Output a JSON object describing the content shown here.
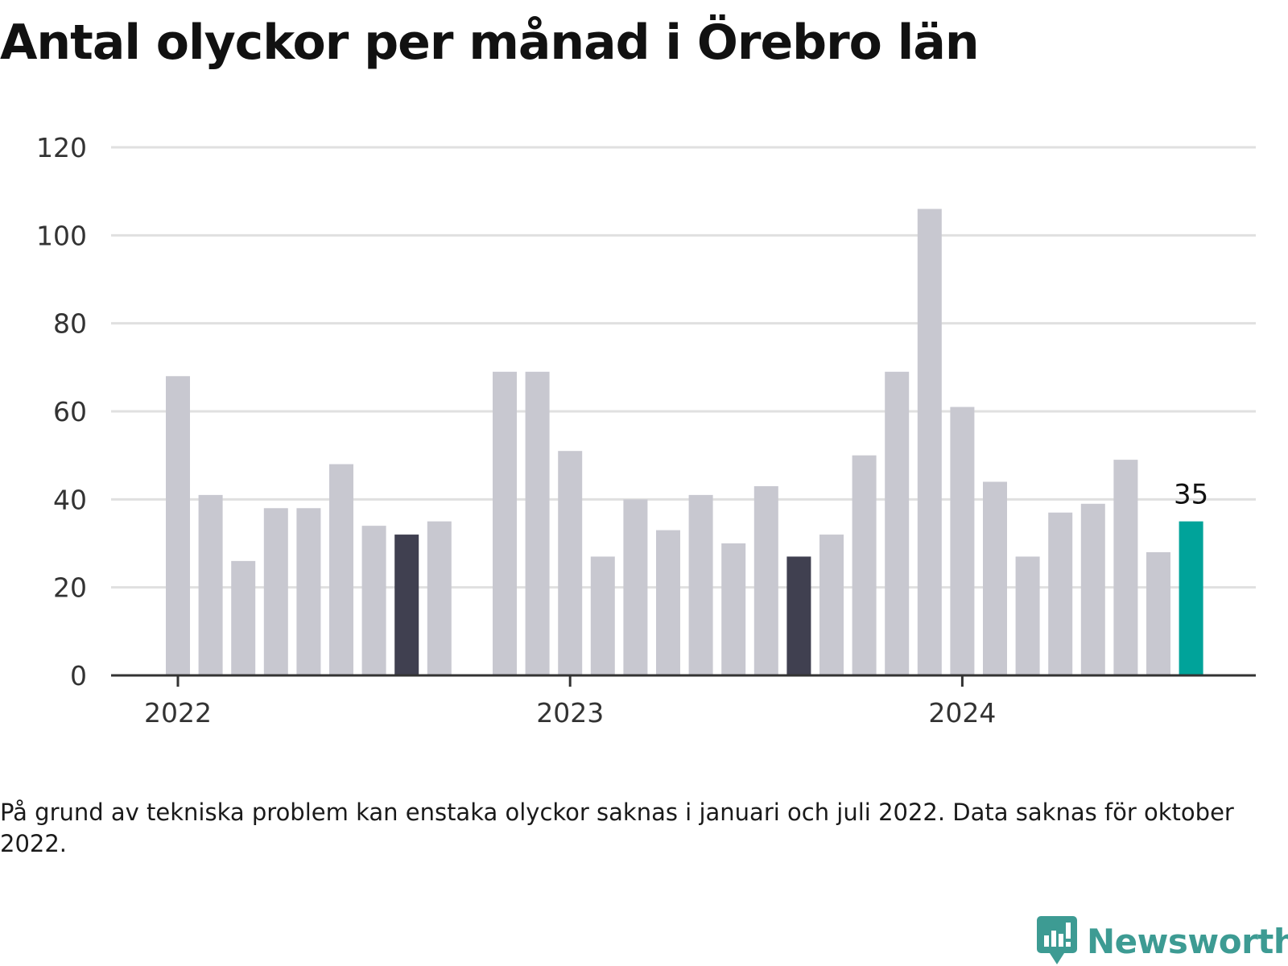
{
  "title": "Antal olyckor per månad i Örebro län",
  "footnote": "På grund av tekniska problem kan enstaka olyckor saknas i januari och juli 2022. Data saknas för oktober 2022.",
  "brand": {
    "name": "Newsworthy",
    "color": "#3d9b93",
    "icon": "chart-bubble-icon"
  },
  "chart_data": {
    "type": "bar",
    "ylim": [
      0,
      120
    ],
    "y_ticks": [
      0,
      20,
      40,
      60,
      80,
      100,
      120
    ],
    "x_tick_labels": [
      {
        "label": "2022",
        "month": "2022-01"
      },
      {
        "label": "2023",
        "month": "2023-01"
      },
      {
        "label": "2024",
        "month": "2024-01"
      }
    ],
    "grid": true,
    "colors": {
      "default": "#c8c8d0",
      "highlight": "#404050",
      "latest": "#00a39a",
      "grid": "#e0e0e0",
      "axis": "#333333"
    },
    "annotation": {
      "month": "2024-08",
      "text": "35"
    },
    "months": [
      "2022-01",
      "2022-02",
      "2022-03",
      "2022-04",
      "2022-05",
      "2022-06",
      "2022-07",
      "2022-08",
      "2022-09",
      "2022-10",
      "2022-11",
      "2022-12",
      "2023-01",
      "2023-02",
      "2023-03",
      "2023-04",
      "2023-05",
      "2023-06",
      "2023-07",
      "2023-08",
      "2023-09",
      "2023-10",
      "2023-11",
      "2023-12",
      "2024-01",
      "2024-02",
      "2024-03",
      "2024-04",
      "2024-05",
      "2024-06",
      "2024-07",
      "2024-08"
    ],
    "values": [
      68,
      41,
      26,
      38,
      38,
      48,
      34,
      32,
      35,
      null,
      69,
      69,
      51,
      27,
      40,
      33,
      41,
      30,
      43,
      27,
      32,
      50,
      69,
      106,
      61,
      44,
      27,
      37,
      39,
      49,
      28,
      35
    ],
    "highlight_months": [
      "2022-08",
      "2023-08"
    ],
    "latest_month": "2024-08"
  }
}
